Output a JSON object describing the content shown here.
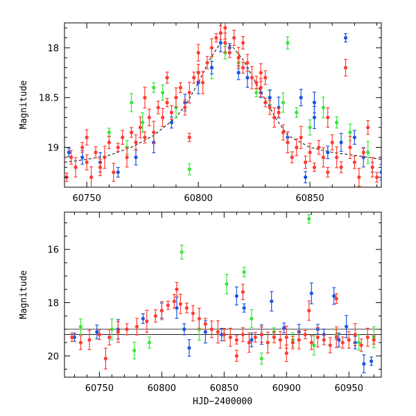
{
  "chart_data": [
    {
      "type": "scatter",
      "panel": "top",
      "xlabel": "",
      "ylabel": "Magnitude",
      "xlim": [
        60740,
        60882
      ],
      "ylim": [
        19.4,
        17.75
      ],
      "y_inverted": true,
      "x_ticks": [
        60750,
        60800,
        60850
      ],
      "y_ticks": [
        18,
        18.5,
        19
      ],
      "x_tick_labels": [
        "60750",
        "60800",
        "60850"
      ],
      "y_tick_labels": [
        "18",
        "18.5",
        "19"
      ],
      "model_curve": {
        "name": "fit",
        "style": "dashed",
        "color": "#000000",
        "points": [
          [
            60740,
            19.15
          ],
          [
            60750,
            19.12
          ],
          [
            60760,
            19.08
          ],
          [
            60770,
            19.0
          ],
          [
            60780,
            18.88
          ],
          [
            60790,
            18.7
          ],
          [
            60795,
            18.55
          ],
          [
            60800,
            18.35
          ],
          [
            60805,
            18.12
          ],
          [
            60810,
            17.95
          ],
          [
            60815,
            17.98
          ],
          [
            60820,
            18.12
          ],
          [
            60825,
            18.32
          ],
          [
            60830,
            18.52
          ],
          [
            60835,
            18.72
          ],
          [
            60840,
            18.88
          ],
          [
            60850,
            19.0
          ],
          [
            60860,
            19.05
          ],
          [
            60870,
            19.08
          ],
          [
            60882,
            19.12
          ]
        ]
      },
      "series": [
        {
          "name": "red",
          "color": "#ff3b30",
          "points": [
            [
              60741,
              19.3
            ],
            [
              60743,
              19.1
            ],
            [
              60745,
              19.2
            ],
            [
              60748,
              19.0
            ],
            [
              60750,
              19.15
            ],
            [
              60752,
              19.3
            ],
            [
              60754,
              19.05
            ],
            [
              60756,
              19.2
            ],
            [
              60758,
              19.1
            ],
            [
              60760,
              18.95
            ],
            [
              60762,
              19.25
            ],
            [
              60764,
              19.0
            ],
            [
              60766,
              18.9
            ],
            [
              60768,
              19.1
            ],
            [
              60770,
              18.85
            ],
            [
              60772,
              18.95
            ],
            [
              60774,
              18.8
            ],
            [
              60776,
              18.9
            ],
            [
              60778,
              18.7
            ],
            [
              60780,
              18.85
            ],
            [
              60782,
              18.6
            ],
            [
              60784,
              18.7
            ],
            [
              60786,
              18.55
            ],
            [
              60788,
              18.65
            ],
            [
              60790,
              18.5
            ],
            [
              60792,
              18.4
            ],
            [
              60794,
              18.6
            ],
            [
              60796,
              18.45
            ],
            [
              60798,
              18.3
            ],
            [
              60800,
              18.25
            ],
            [
              60802,
              18.35
            ],
            [
              60804,
              18.15
            ],
            [
              60806,
              18.0
            ],
            [
              60808,
              17.9
            ],
            [
              60810,
              17.85
            ],
            [
              60812,
              17.95
            ],
            [
              60814,
              18.05
            ],
            [
              60816,
              17.9
            ],
            [
              60818,
              18.1
            ],
            [
              60820,
              18.2
            ],
            [
              60822,
              18.15
            ],
            [
              60824,
              18.3
            ],
            [
              60826,
              18.35
            ],
            [
              60828,
              18.4
            ],
            [
              60830,
              18.55
            ],
            [
              60832,
              18.6
            ],
            [
              60834,
              18.7
            ],
            [
              60836,
              18.65
            ],
            [
              60838,
              18.85
            ],
            [
              60840,
              18.95
            ],
            [
              60842,
              19.1
            ],
            [
              60844,
              19.0
            ],
            [
              60846,
              18.9
            ],
            [
              60848,
              19.15
            ],
            [
              60850,
              19.05
            ],
            [
              60852,
              19.2
            ],
            [
              60854,
              19.0
            ],
            [
              60856,
              19.1
            ],
            [
              60858,
              19.25
            ],
            [
              60860,
              18.95
            ],
            [
              60862,
              19.1
            ],
            [
              60864,
              19.2
            ],
            [
              60866,
              18.2
            ],
            [
              60868,
              19.0
            ],
            [
              60870,
              19.15
            ],
            [
              60872,
              19.3
            ],
            [
              60874,
              19.05
            ],
            [
              60876,
              18.8
            ],
            [
              60878,
              19.2
            ],
            [
              60880,
              19.3
            ],
            [
              60750,
              18.9
            ],
            [
              60776,
              18.5
            ],
            [
              60786,
              18.3
            ],
            [
              60800,
              18.05
            ],
            [
              60812,
              17.8
            ],
            [
              60820,
              17.95
            ],
            [
              60828,
              18.25
            ],
            [
              60796,
              18.9
            ],
            [
              60830,
              18.3
            ],
            [
              60858,
              18.7
            ]
          ]
        },
        {
          "name": "green",
          "color": "#39e639",
          "points": [
            [
              60760,
              18.85
            ],
            [
              60768,
              19.0
            ],
            [
              60775,
              18.75
            ],
            [
              60780,
              18.4
            ],
            [
              60784,
              18.45
            ],
            [
              60790,
              18.6
            ],
            [
              60796,
              19.22
            ],
            [
              60800,
              18.25
            ],
            [
              60806,
              18.2
            ],
            [
              60812,
              18.05
            ],
            [
              60818,
              18.15
            ],
            [
              60826,
              18.45
            ],
            [
              60832,
              18.5
            ],
            [
              60838,
              18.55
            ],
            [
              60844,
              18.65
            ],
            [
              60850,
              18.8
            ],
            [
              60856,
              18.6
            ],
            [
              60862,
              18.75
            ],
            [
              60868,
              18.85
            ],
            [
              60876,
              19.05
            ],
            [
              60840,
              17.95
            ],
            [
              60770,
              18.55
            ]
          ]
        },
        {
          "name": "blue",
          "color": "#1a55e0",
          "points": [
            [
              60742,
              19.05
            ],
            [
              60748,
              19.1
            ],
            [
              60756,
              19.15
            ],
            [
              60764,
              19.25
            ],
            [
              60772,
              19.1
            ],
            [
              60780,
              18.95
            ],
            [
              60788,
              18.75
            ],
            [
              60794,
              18.55
            ],
            [
              60800,
              18.35
            ],
            [
              60806,
              18.2
            ],
            [
              60810,
              17.95
            ],
            [
              60814,
              18.0
            ],
            [
              60818,
              18.25
            ],
            [
              60822,
              18.3
            ],
            [
              60828,
              18.45
            ],
            [
              60832,
              18.5
            ],
            [
              60836,
              18.6
            ],
            [
              60840,
              18.9
            ],
            [
              60846,
              18.5
            ],
            [
              60852,
              18.7
            ],
            [
              60858,
              19.05
            ],
            [
              60864,
              18.95
            ],
            [
              60866,
              17.9
            ],
            [
              60870,
              18.9
            ],
            [
              60874,
              19.1
            ],
            [
              60878,
              19.2
            ],
            [
              60882,
              19.25
            ],
            [
              60852,
              18.55
            ],
            [
              60848,
              19.3
            ]
          ]
        }
      ]
    },
    {
      "type": "scatter",
      "panel": "bottom",
      "xlabel": "HJD−2400000",
      "ylabel": "Magnitude",
      "xlim": [
        60722,
        60976
      ],
      "ylim": [
        20.8,
        14.6
      ],
      "y_inverted": true,
      "x_ticks": [
        60750,
        60800,
        60850,
        60900,
        60950
      ],
      "y_ticks": [
        16,
        18,
        20
      ],
      "x_tick_labels": [
        "60750",
        "60800",
        "60850",
        "60900",
        "60950"
      ],
      "y_tick_labels": [
        "16",
        "18",
        "20"
      ],
      "reference_lines": [
        19.0,
        19.2
      ],
      "series": [
        {
          "name": "red",
          "color": "#ff3b30",
          "points": [
            [
              60728,
              19.3
            ],
            [
              60735,
              19.5
            ],
            [
              60742,
              19.4
            ],
            [
              60750,
              19.2
            ],
            [
              60758,
              19.3
            ],
            [
              60765,
              19.1
            ],
            [
              60772,
              19.0
            ],
            [
              60780,
              18.9
            ],
            [
              60788,
              18.7
            ],
            [
              60795,
              18.5
            ],
            [
              60800,
              18.3
            ],
            [
              60805,
              18.1
            ],
            [
              60810,
              17.95
            ],
            [
              60815,
              18.05
            ],
            [
              60820,
              18.2
            ],
            [
              60825,
              18.4
            ],
            [
              60830,
              18.6
            ],
            [
              60835,
              18.8
            ],
            [
              60840,
              19.0
            ],
            [
              60845,
              19.1
            ],
            [
              60850,
              19.2
            ],
            [
              60855,
              19.3
            ],
            [
              60860,
              19.4
            ],
            [
              60865,
              19.2
            ],
            [
              60870,
              19.5
            ],
            [
              60875,
              19.3
            ],
            [
              60880,
              19.2
            ],
            [
              60885,
              19.5
            ],
            [
              60890,
              19.3
            ],
            [
              60895,
              19.4
            ],
            [
              60900,
              19.3
            ],
            [
              60905,
              19.5
            ],
            [
              60910,
              19.4
            ],
            [
              60915,
              19.2
            ],
            [
              60920,
              19.5
            ],
            [
              60925,
              19.3
            ],
            [
              60930,
              19.4
            ],
            [
              60935,
              19.6
            ],
            [
              60940,
              19.3
            ],
            [
              60945,
              19.5
            ],
            [
              60950,
              19.4
            ],
            [
              60955,
              19.2
            ],
            [
              60960,
              19.6
            ],
            [
              60965,
              19.3
            ],
            [
              60970,
              19.4
            ],
            [
              60812,
              17.5
            ],
            [
              60918,
              18.3
            ],
            [
              60940,
              17.85
            ],
            [
              60865,
              17.6
            ],
            [
              60755,
              20.1
            ],
            [
              60860,
              20.0
            ],
            [
              60900,
              19.9
            ]
          ]
        },
        {
          "name": "green",
          "color": "#39e639",
          "points": [
            [
              60918,
              14.85
            ],
            [
              60816,
              16.1
            ],
            [
              60852,
              17.3
            ],
            [
              60866,
              16.85
            ],
            [
              60735,
              18.9
            ],
            [
              60760,
              19.0
            ],
            [
              60790,
              19.5
            ],
            [
              60778,
              19.8
            ],
            [
              60830,
              19.0
            ],
            [
              60850,
              19.2
            ],
            [
              60872,
              18.6
            ],
            [
              60890,
              19.1
            ],
            [
              60905,
              19.4
            ],
            [
              60922,
              19.6
            ],
            [
              60940,
              19.2
            ],
            [
              60958,
              19.5
            ],
            [
              60970,
              19.3
            ],
            [
              60880,
              20.1
            ]
          ]
        },
        {
          "name": "blue",
          "color": "#1a55e0",
          "points": [
            [
              60730,
              19.3
            ],
            [
              60748,
              19.1
            ],
            [
              60765,
              19.0
            ],
            [
              60785,
              18.6
            ],
            [
              60800,
              18.3
            ],
            [
              60812,
              18.2
            ],
            [
              60818,
              19.0
            ],
            [
              60822,
              19.7
            ],
            [
              60835,
              19.1
            ],
            [
              60848,
              19.2
            ],
            [
              60860,
              17.75
            ],
            [
              60866,
              18.2
            ],
            [
              60872,
              19.4
            ],
            [
              60888,
              17.95
            ],
            [
              60898,
              18.95
            ],
            [
              60910,
              19.1
            ],
            [
              60920,
              17.65
            ],
            [
              60930,
              19.2
            ],
            [
              60938,
              17.75
            ],
            [
              60948,
              18.9
            ],
            [
              60955,
              19.5
            ],
            [
              60962,
              20.3
            ],
            [
              60968,
              20.2
            ],
            [
              60942,
              19.4
            ],
            [
              60880,
              19.2
            ],
            [
              60925,
              19.0
            ]
          ]
        }
      ]
    }
  ]
}
